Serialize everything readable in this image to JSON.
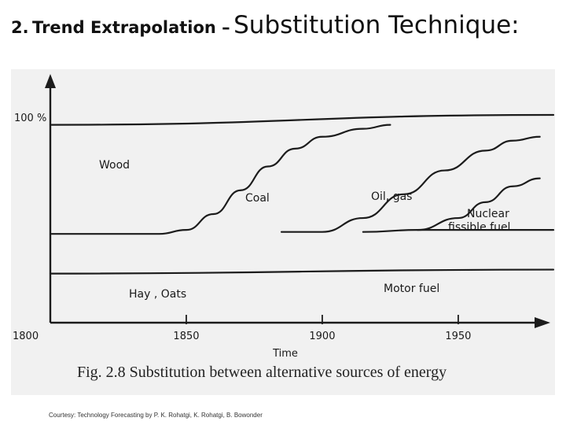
{
  "slide": {
    "title_number": "2.",
    "title_lead": "Trend Extrapolation –",
    "title_main": "Substitution Technique:",
    "courtesy": "Courtesy: Technology Forecasting by P. K. Rohatgi, K. Rohatgi, B. Bowonder"
  },
  "chart_data": {
    "type": "line",
    "caption": "Fig. 2.8 Substitution between alternative sources of energy",
    "xlabel": "Time",
    "ylabel": "",
    "y_top_label": "100 %",
    "xlim": [
      1800,
      1985
    ],
    "ylim": [
      0,
      100
    ],
    "x_ticks": [
      {
        "value": 1800,
        "label": "1800"
      },
      {
        "value": 1850,
        "label": "1850"
      },
      {
        "value": 1900,
        "label": "1900"
      },
      {
        "value": 1950,
        "label": "1950"
      }
    ],
    "region_labels": [
      {
        "id": "wood",
        "text": "Wood"
      },
      {
        "id": "coal",
        "text": "Coal"
      },
      {
        "id": "oil",
        "text": "Oil, gas"
      },
      {
        "id": "nuclear_1",
        "text": "Nuclear"
      },
      {
        "id": "nuclear_2",
        "text": "fissible fuel"
      },
      {
        "id": "hay",
        "text": "Hay , Oats"
      },
      {
        "id": "motor",
        "text": "Motor fuel"
      }
    ],
    "series": [
      {
        "id": "top",
        "points": [
          [
            1800,
            95
          ],
          [
            1985,
            100
          ]
        ]
      },
      {
        "id": "hay_oats_boundary",
        "points": [
          [
            1800,
            20
          ],
          [
            1985,
            22
          ]
        ]
      },
      {
        "id": "wood_coal",
        "points": [
          [
            1800,
            40
          ],
          [
            1840,
            40
          ],
          [
            1850,
            42
          ],
          [
            1860,
            50
          ],
          [
            1870,
            62
          ],
          [
            1880,
            74
          ],
          [
            1890,
            83
          ],
          [
            1900,
            89
          ],
          [
            1915,
            93
          ],
          [
            1925,
            95
          ]
        ]
      },
      {
        "id": "coal_oil",
        "points": [
          [
            1885,
            41
          ],
          [
            1900,
            41
          ],
          [
            1915,
            48
          ],
          [
            1930,
            60
          ],
          [
            1945,
            72
          ],
          [
            1960,
            82
          ],
          [
            1970,
            87
          ],
          [
            1980,
            89
          ]
        ]
      },
      {
        "id": "oil_nuclear",
        "points": [
          [
            1915,
            41
          ],
          [
            1935,
            42
          ],
          [
            1950,
            48
          ],
          [
            1960,
            56
          ],
          [
            1970,
            64
          ],
          [
            1980,
            68
          ]
        ]
      },
      {
        "id": "nuclear_baseline",
        "points": [
          [
            1935,
            42
          ],
          [
            1985,
            42
          ]
        ]
      }
    ]
  }
}
